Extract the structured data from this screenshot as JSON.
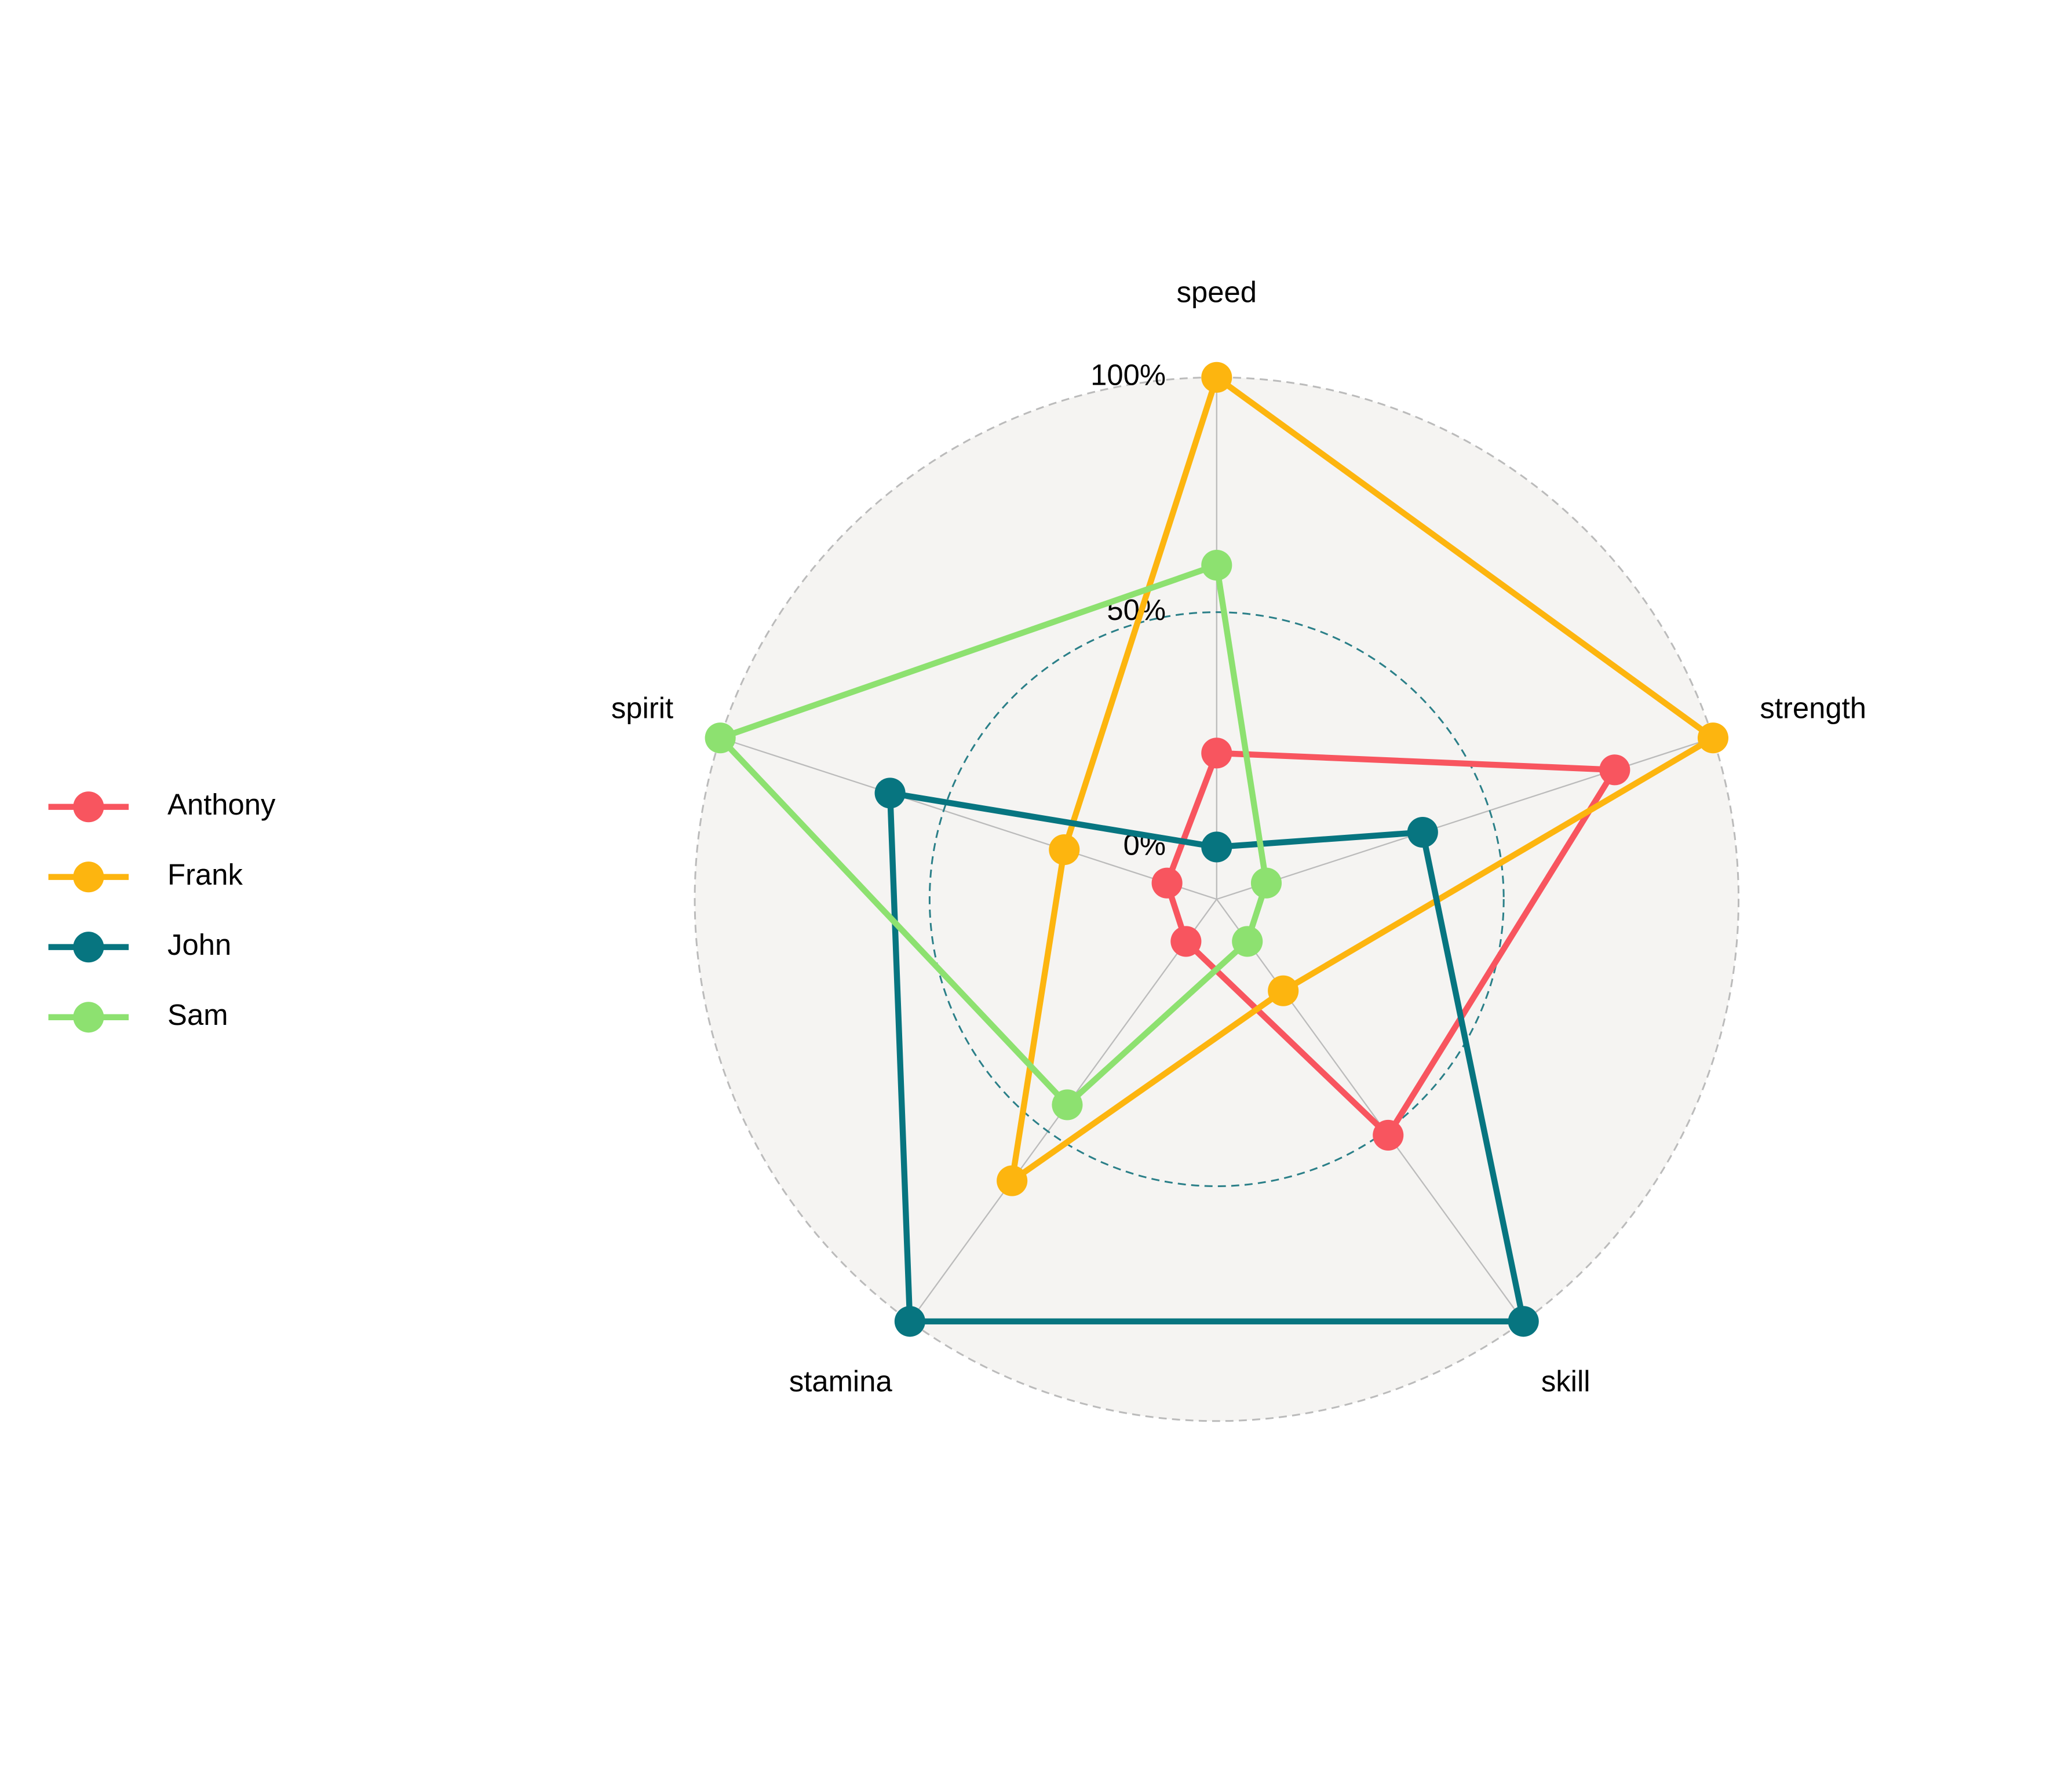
{
  "chart_data": {
    "type": "radar",
    "categories": [
      "speed",
      "strength",
      "skill",
      "stamina",
      "spirit"
    ],
    "ylim": [
      0,
      1
    ],
    "yticks": [
      {
        "value": 0,
        "label": "0%"
      },
      {
        "value": 0.5,
        "label": "50%"
      },
      {
        "value": 1,
        "label": "100%"
      }
    ],
    "grid": true,
    "legend": "left",
    "series": [
      {
        "name": "Anthony",
        "color": "#f8555f",
        "values": [
          0.2,
          0.78,
          0.51,
          0,
          0
        ]
      },
      {
        "name": "Frank",
        "color": "#fdb50f",
        "values": [
          1,
          1,
          0.13,
          0.63,
          0.23
        ]
      },
      {
        "name": "John",
        "color": "#077580",
        "values": [
          0,
          0.35,
          1,
          1,
          0.62
        ]
      },
      {
        "name": "Sam",
        "color": "#8de170",
        "values": [
          0.6,
          0,
          0,
          0.43,
          1
        ]
      }
    ]
  }
}
